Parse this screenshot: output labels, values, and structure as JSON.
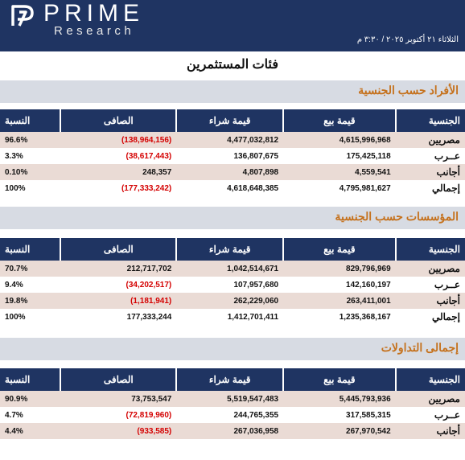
{
  "header": {
    "brand_name": "PRIME",
    "brand_sub": "Research",
    "date": "الثلاثاء ٢١ أكتوبر ٢٠٢٥ / ٣:٣٠ م",
    "background_color": "#1f3462"
  },
  "page_title": "فئات المستثمرين",
  "columns": {
    "nationality": "الجنسية",
    "sell": "قيمة بيع",
    "buy": "قيمة شراء",
    "net": "الصافى",
    "ratio": "النسبة"
  },
  "sections": [
    {
      "title": "الأفراد حسب الجنسية",
      "rows": [
        {
          "nationality": "مصريين",
          "sell": "4,615,996,968",
          "buy": "4,477,032,812",
          "net": "(138,964,156)",
          "net_negative": true,
          "ratio": "96.6%"
        },
        {
          "nationality": "عــرب",
          "sell": "175,425,118",
          "buy": "136,807,675",
          "net": "(38,617,443)",
          "net_negative": true,
          "ratio": "3.3%"
        },
        {
          "nationality": "أجانب",
          "sell": "4,559,541",
          "buy": "4,807,898",
          "net": "248,357",
          "net_negative": false,
          "ratio": "0.10%"
        },
        {
          "nationality": "إجمالي",
          "sell": "4,795,981,627",
          "buy": "4,618,648,385",
          "net": "(177,333,242)",
          "net_negative": true,
          "ratio": "100%"
        }
      ]
    },
    {
      "title": "المؤسسات حسب الجنسية",
      "rows": [
        {
          "nationality": "مصريين",
          "sell": "829,796,969",
          "buy": "1,042,514,671",
          "net": "212,717,702",
          "net_negative": false,
          "ratio": "70.7%"
        },
        {
          "nationality": "عــرب",
          "sell": "142,160,197",
          "buy": "107,957,680",
          "net": "(34,202,517)",
          "net_negative": true,
          "ratio": "9.4%"
        },
        {
          "nationality": "أجانب",
          "sell": "263,411,001",
          "buy": "262,229,060",
          "net": "(1,181,941)",
          "net_negative": true,
          "ratio": "19.8%"
        },
        {
          "nationality": "إجمالي",
          "sell": "1,235,368,167",
          "buy": "1,412,701,411",
          "net": "177,333,244",
          "net_negative": false,
          "ratio": "100%"
        }
      ]
    },
    {
      "title": "إجمالى التداولات",
      "rows": [
        {
          "nationality": "مصريين",
          "sell": "5,445,793,936",
          "buy": "5,519,547,483",
          "net": "73,753,547",
          "net_negative": false,
          "ratio": "90.9%"
        },
        {
          "nationality": "عــرب",
          "sell": "317,585,315",
          "buy": "244,765,355",
          "net": "(72,819,960)",
          "net_negative": true,
          "ratio": "4.7%"
        },
        {
          "nationality": "أجانب",
          "sell": "267,970,542",
          "buy": "267,036,958",
          "net": "(933,585)",
          "net_negative": true,
          "ratio": "4.4%"
        }
      ]
    }
  ]
}
